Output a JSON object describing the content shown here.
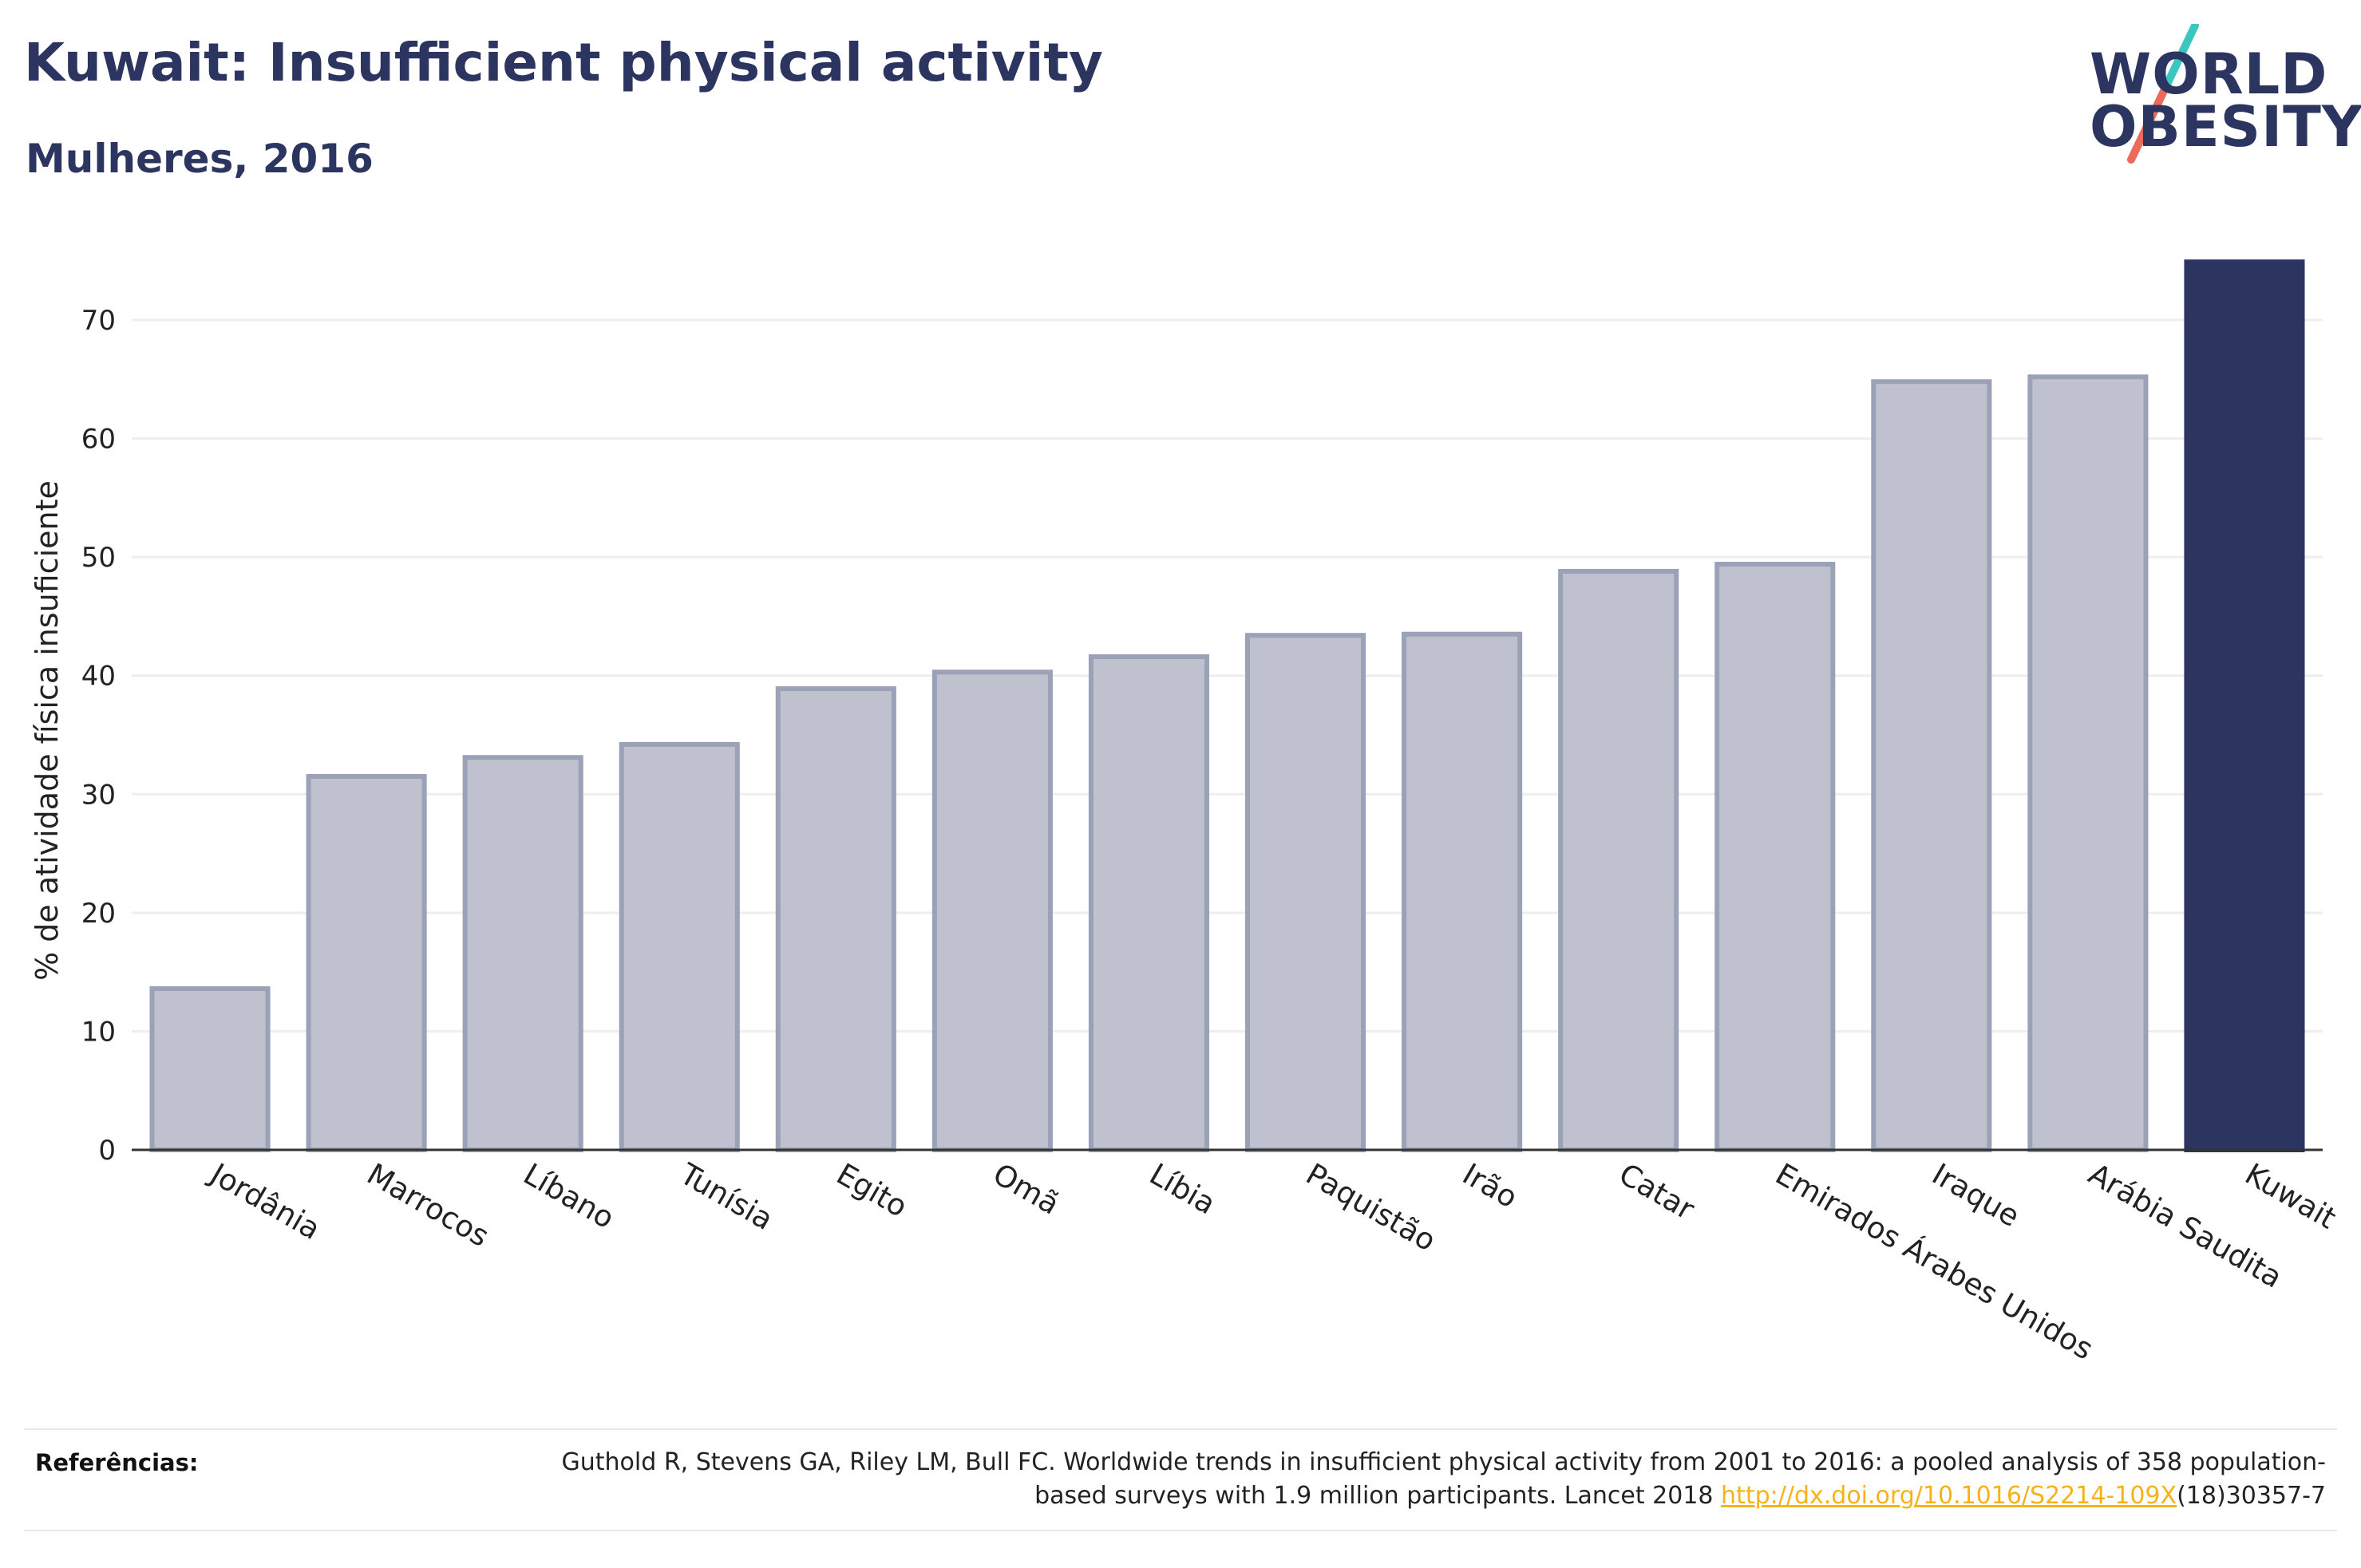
{
  "header": {
    "title": "Kuwait: Insufficient physical activity",
    "subtitle": "Mulheres, 2016"
  },
  "logo": {
    "line1": "WORLD",
    "line2": "OBESITY",
    "accent_colors": [
      "#3cc6c0",
      "#ea6a5b"
    ]
  },
  "colors": {
    "bar_default": "#bfc2ce",
    "bar_default_stroke": "#9ba1b7",
    "bar_highlight": "#2b3560",
    "axis": "#333333",
    "grid": "#eeeeee",
    "link": "#f4b31a"
  },
  "chart_data": {
    "type": "bar",
    "title": "Kuwait: Insufficient physical activity",
    "subtitle": "Mulheres, 2016",
    "xlabel": "",
    "ylabel": "% de atividade física insuficiente",
    "ylim": [
      0,
      77
    ],
    "yticks": [
      0,
      10,
      20,
      30,
      40,
      50,
      60,
      70
    ],
    "grid": true,
    "categories": [
      "Jordânia",
      "Marrocos",
      "Líbano",
      "Tunísia",
      "Egito",
      "Omã",
      "Líbia",
      "Paquistão",
      "Irão",
      "Catar",
      "Emirados Árabes Unidos",
      "Iraque",
      "Arábia Saudita",
      "Kuwait"
    ],
    "values": [
      13.6,
      31.5,
      33.1,
      34.2,
      38.9,
      40.3,
      41.6,
      43.4,
      43.5,
      48.8,
      49.4,
      64.8,
      65.2,
      74.9
    ],
    "highlight": "Kuwait"
  },
  "references": {
    "label": "Referências:",
    "text_before": "Guthold R, Stevens GA, Riley LM, Bull FC. Worldwide trends in insufficient physical activity from 2001 to 2016: a pooled analysis of 358 population-based surveys with 1.9 million participants. Lancet 2018 ",
    "link": "http://dx.doi.org/10.1016/S2214-109X",
    "text_after": "(18)30357-7"
  }
}
